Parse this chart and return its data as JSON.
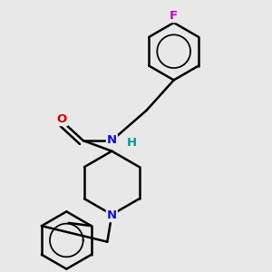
{
  "bg": "#e8e8e8",
  "bc": "#000000",
  "lw": 1.8,
  "colors": {
    "O": "#cc0000",
    "N": "#1111cc",
    "H": "#009999",
    "F": "#cc00bb",
    "C": "#000000"
  },
  "fs": 9.5,
  "figsize": [
    3.0,
    3.0
  ],
  "dpi": 100
}
